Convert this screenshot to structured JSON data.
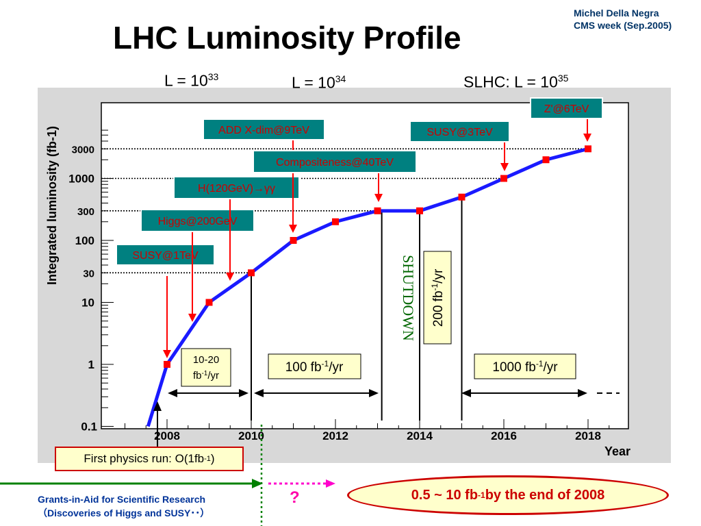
{
  "slide": {
    "title": "LHC Luminosity Profile",
    "credit_line1": "Michel Della Negra",
    "credit_line2": "CMS week (Sep.2005)",
    "lum_a_prefix": "L = 10",
    "lum_a_exp": "33",
    "lum_b_prefix": "L = 10",
    "lum_b_exp": "34",
    "lum_c_prefix": "SLHC: L = 10",
    "lum_c_exp": "35",
    "first_run_prefix": "First physics run: O(1fb",
    "first_run_exp": "-1",
    "first_run_suffix": ")",
    "grants_line1": "Grants-in-Aid for Scientific Research",
    "grants_line2": "（Discoveries of Higgs and SUSY･･）",
    "question": "?",
    "oval_prefix": "0.5 ~ 10 fb",
    "oval_exp": "-1",
    "oval_suffix": " by the end of 2008"
  },
  "chart_data": {
    "type": "line",
    "ylabel": "Integrated luminosity (fb-1)",
    "xlabel": "Year",
    "y_scale": "log",
    "ylim": [
      0.1,
      6000
    ],
    "xlim": [
      2007,
      2019
    ],
    "y_ticks": [
      {
        "value": 0.1,
        "label": "0.1"
      },
      {
        "value": 1,
        "label": "1"
      },
      {
        "value": 10,
        "label": "10"
      },
      {
        "value": 30,
        "label": "30"
      },
      {
        "value": 100,
        "label": "100"
      },
      {
        "value": 300,
        "label": "300"
      },
      {
        "value": 1000,
        "label": "1000"
      },
      {
        "value": 3000,
        "label": "3000"
      }
    ],
    "x_ticks": [
      "2008",
      "2010",
      "2012",
      "2014",
      "2016",
      "2018"
    ],
    "curve_start": {
      "x": 2007.55,
      "y": 0.1
    },
    "series": [
      {
        "color": "#1a1aff",
        "points": [
          {
            "x": 2008,
            "y": 1
          },
          {
            "x": 2009,
            "y": 10
          },
          {
            "x": 2010,
            "y": 30
          },
          {
            "x": 2011,
            "y": 100
          },
          {
            "x": 2012,
            "y": 200
          },
          {
            "x": 2013,
            "y": 300
          },
          {
            "x": 2014,
            "y": 300
          },
          {
            "x": 2015,
            "y": 500
          },
          {
            "x": 2016,
            "y": 1000
          },
          {
            "x": 2017,
            "y": 2000
          },
          {
            "x": 2018,
            "y": 3000
          }
        ]
      }
    ],
    "dotted_refs": [
      {
        "y": 3000,
        "x_to": 2018
      },
      {
        "y": 1000,
        "x_to": 2016
      },
      {
        "y": 300,
        "x_to": 2013
      },
      {
        "y": 30,
        "x_to": 2010
      }
    ],
    "vertical_lines": [
      2010,
      2013.1,
      2014,
      2015
    ],
    "annotations": [
      {
        "text": "SUSY@1TeV",
        "x": 2008,
        "y": 1
      },
      {
        "text": "Higgs@200GeV",
        "x": 2008.6,
        "y": 5
      },
      {
        "text": "H(120GeV)→γγ",
        "x": 2009.5,
        "y": 20
      },
      {
        "text": "ADD X-dim@9TeV",
        "x": 2011,
        "y": 100
      },
      {
        "text": "Compositeness@40TeV",
        "x": 2013,
        "y": 300
      },
      {
        "text": "SUSY@3TeV",
        "x": 2016,
        "y": 1000
      },
      {
        "text": "Z'@6TeV",
        "x": 2018,
        "y": 3000
      }
    ],
    "rate_boxes": [
      {
        "line1": "10-20",
        "line2_base": "fb",
        "line2_exp": "-1",
        "line2_suffix": "/yr"
      },
      {
        "base": "100 fb",
        "exp": "-1",
        "suffix": "/yr"
      },
      {
        "base": "1000 fb",
        "exp": "-1",
        "suffix": "/yr"
      },
      {
        "base": "200 fb",
        "exp": "-1",
        "suffix": "/yr"
      }
    ],
    "shutdown_label": "SHUTDOWN",
    "colors": {
      "curve": "#1a1aff",
      "marker": "#ff0000",
      "annotation_box": "#008080",
      "annotation_text": "#cc0000",
      "rate_box": "#ffffcc",
      "shutdown": "#006600",
      "panel": "#d8d8d8",
      "grants_arrow": "#008000",
      "pink_arrow": "#ff00cc"
    }
  }
}
